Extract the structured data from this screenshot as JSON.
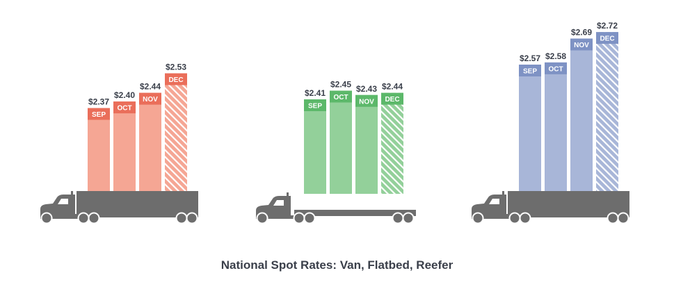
{
  "chart_data": {
    "type": "bar",
    "title": "National Spot Rates: Van, Flatbed, Reefer",
    "categories": [
      "SEP",
      "OCT",
      "NOV",
      "DEC"
    ],
    "value_prefix": "$",
    "colors": {
      "bar_fill": "#f5a694",
      "bar_label_band": "#ea6e5a",
      "bar_fill_green": "#93d09a",
      "bar_label_band_green": "#5cb86a",
      "bar_fill_blue": "#a8b6d8",
      "bar_label_band_blue": "#7e92c4",
      "truck": "#6d6d6d",
      "value_text": "#3a3f4a",
      "title_text": "#3a3f4a"
    },
    "series": [
      {
        "values": [
          2.37,
          2.4,
          2.44,
          2.53
        ],
        "value_labels": [
          "$2.37",
          "$2.40",
          "$2.44",
          "$2.53"
        ],
        "trailer": "van",
        "color": "#f5a694",
        "band_color": "#ea6e5a",
        "projected_last": true
      },
      {
        "values": [
          2.41,
          2.45,
          2.43,
          2.44
        ],
        "value_labels": [
          "$2.41",
          "$2.45",
          "$2.43",
          "$2.44"
        ],
        "trailer": "flatbed",
        "color": "#93d09a",
        "band_color": "#5cb86a",
        "projected_last": true
      },
      {
        "values": [
          2.57,
          2.58,
          2.69,
          2.72
        ],
        "value_labels": [
          "$2.57",
          "$2.58",
          "$2.69",
          "$2.72"
        ],
        "trailer": "reefer",
        "color": "#a8b6d8",
        "band_color": "#7e92c4",
        "projected_last": true
      }
    ]
  }
}
